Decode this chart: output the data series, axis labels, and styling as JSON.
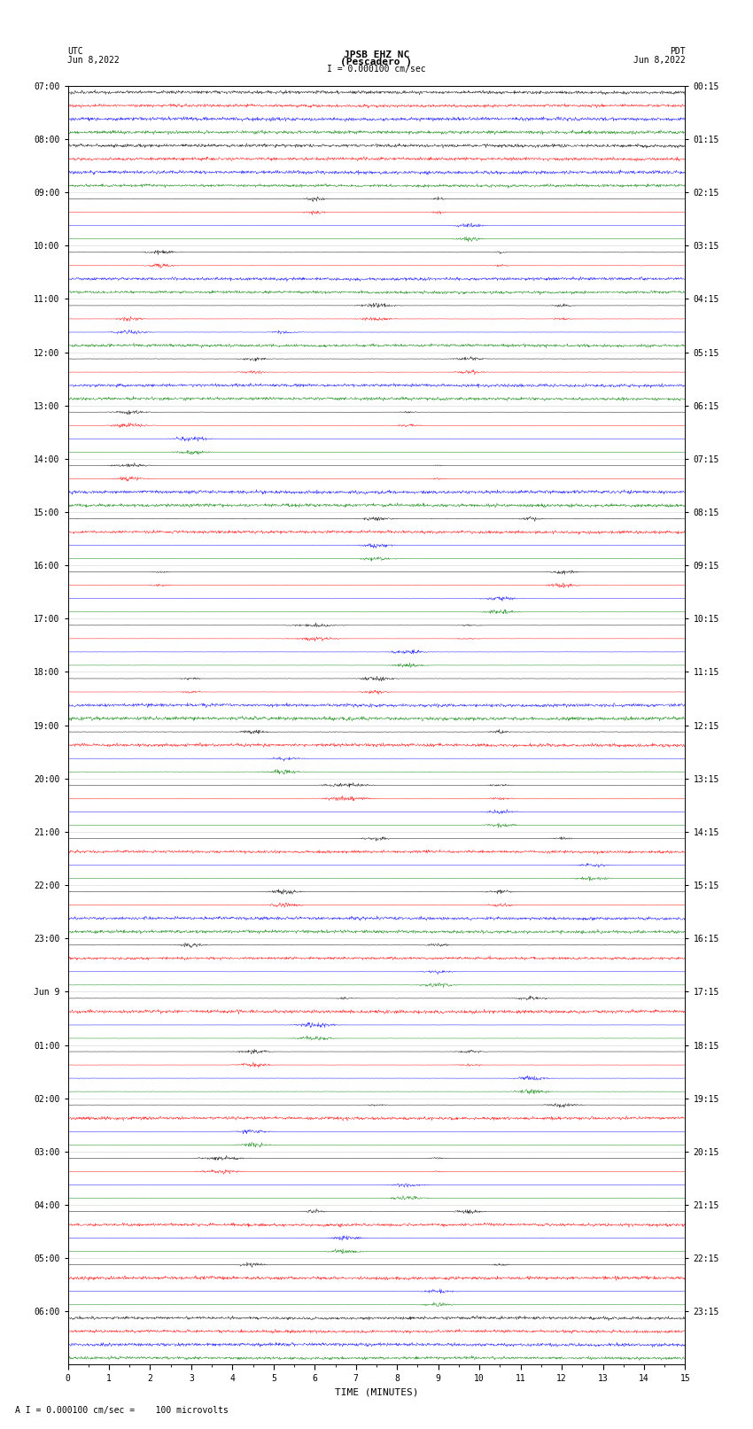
{
  "title_line1": "JPSB EHZ NC",
  "title_line2": "(Pescadero )",
  "scale_label": "I = 0.000100 cm/sec",
  "left_label_top": "UTC",
  "left_label_date": "Jun 8,2022",
  "right_label_top": "PDT",
  "right_label_date": "Jun 8,2022",
  "bottom_label": "TIME (MINUTES)",
  "bottom_note": "A I = 0.000100 cm/sec =    100 microvolts",
  "utc_hour_labels": [
    "07:00",
    "08:00",
    "09:00",
    "10:00",
    "11:00",
    "12:00",
    "13:00",
    "14:00",
    "15:00",
    "16:00",
    "17:00",
    "18:00",
    "19:00",
    "20:00",
    "21:00",
    "22:00",
    "23:00",
    "Jun 9",
    "01:00",
    "02:00",
    "03:00",
    "04:00",
    "05:00",
    "06:00"
  ],
  "pdt_hour_labels": [
    "00:15",
    "01:15",
    "02:15",
    "03:15",
    "04:15",
    "05:15",
    "06:15",
    "07:15",
    "08:15",
    "09:15",
    "10:15",
    "11:15",
    "12:15",
    "13:15",
    "14:15",
    "15:15",
    "16:15",
    "17:15",
    "18:15",
    "19:15",
    "20:15",
    "21:15",
    "22:15",
    "23:15"
  ],
  "colors": [
    "black",
    "red",
    "blue",
    "green"
  ],
  "n_rows": 96,
  "n_groups": 24,
  "n_minutes": 15,
  "samples_per_minute": 100,
  "background_color": "white",
  "trace_amplitude": 0.35,
  "noise_base": 0.04,
  "seed": 42,
  "fig_width": 8.5,
  "fig_height": 16.13,
  "dpi": 100
}
